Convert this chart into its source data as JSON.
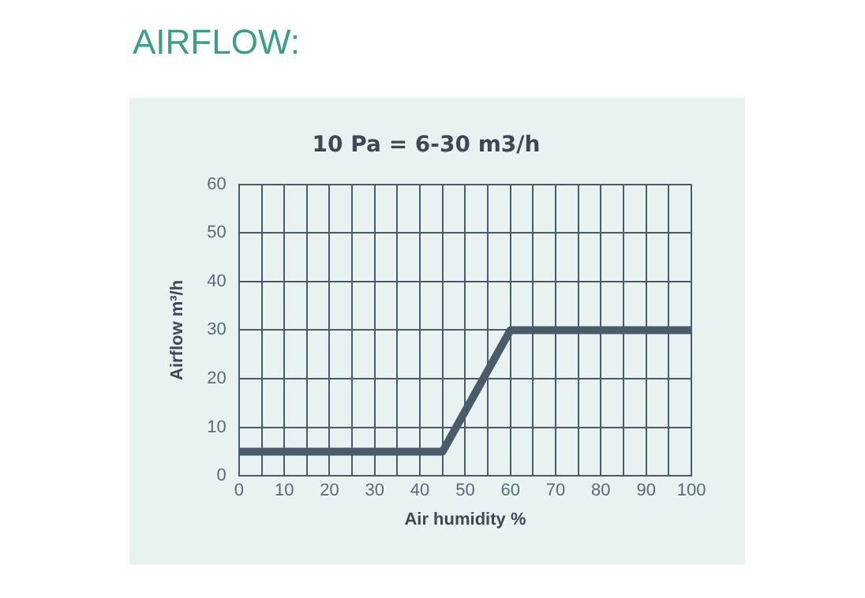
{
  "chart_data": {
    "type": "line",
    "title": "AIRFLOW:",
    "subtitle": "10 Pa = 6-30 m3/h",
    "xlabel": "Air humidity %",
    "ylabel": "Airflow m³/h",
    "x": [
      0,
      45,
      60,
      100
    ],
    "series": [
      {
        "color": "#4a5b6a",
        "values": [
          5,
          5,
          30,
          30
        ]
      }
    ],
    "xlim": [
      0,
      100
    ],
    "xticks": [
      0,
      {
        "value": 5,
        "label": null
      },
      10,
      {
        "value": 15,
        "label": null
      },
      20,
      {
        "value": 25,
        "label": null
      },
      30,
      {
        "value": 35,
        "label": null
      },
      40,
      {
        "value": 45,
        "label": null
      },
      50,
      {
        "value": 55,
        "label": null
      },
      60,
      {
        "value": 65,
        "label": null
      },
      70,
      {
        "value": 75,
        "label": null
      },
      80,
      {
        "value": 85,
        "label": null
      },
      90,
      {
        "value": 95,
        "label": null
      },
      100
    ],
    "ylim": [
      0,
      60
    ],
    "yticks": [
      0,
      10,
      20,
      30,
      40,
      50,
      60
    ],
    "grid": true,
    "legend": false,
    "marker": "none",
    "line_style": "solid"
  }
}
